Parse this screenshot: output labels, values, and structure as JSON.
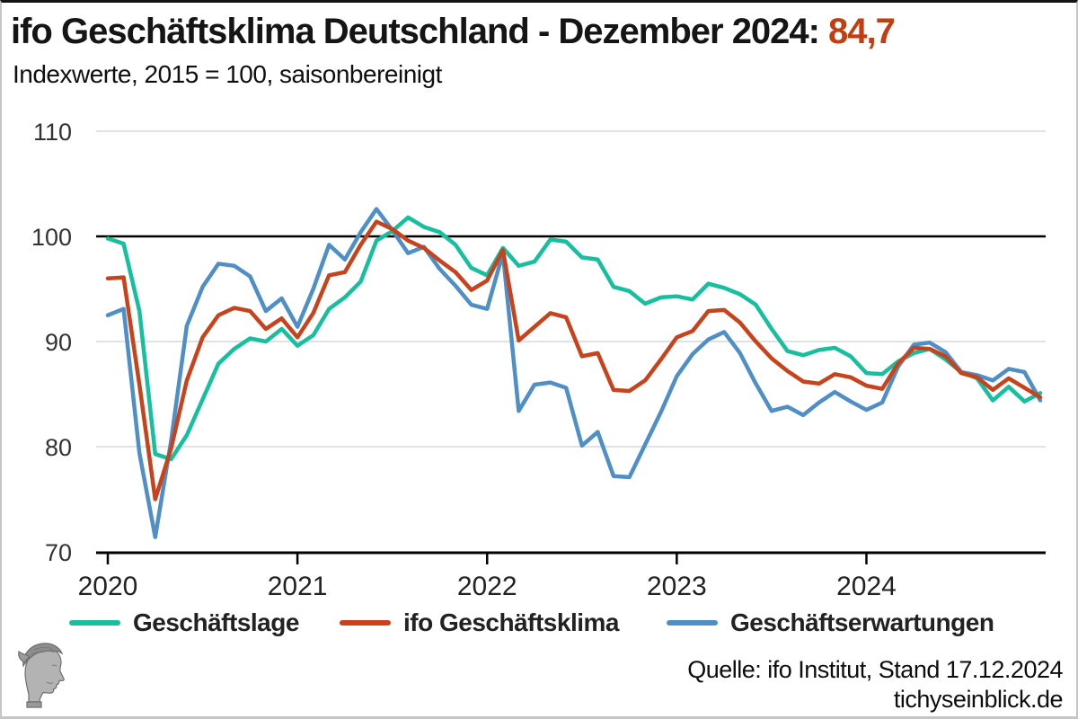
{
  "header": {
    "title_prefix": "ifo Geschäftsklima Deutschland - Dezember 2024:",
    "title_value": "84,7",
    "title_value_color": "#c13e10",
    "subtitle": "Indexwerte, 2015 = 100, saisonbereinigt"
  },
  "chart_data": {
    "type": "line",
    "x_start": "2020-01",
    "x_interval": "monthly",
    "x_tick_labels": [
      "2020",
      "2021",
      "2022",
      "2023",
      "2024"
    ],
    "y_ticks": [
      110,
      100,
      90,
      80,
      70
    ],
    "ylim": [
      70,
      110
    ],
    "gridlines": [
      110,
      90,
      80
    ],
    "reference_line": 100,
    "grid_color": "#e2e2e2",
    "series": [
      {
        "name": "Geschäftslage",
        "color": "#16bf9e",
        "values": [
          99.8,
          99.3,
          92.9,
          79.3,
          78.8,
          81.1,
          84.5,
          87.9,
          89.3,
          90.3,
          90.0,
          91.2,
          89.6,
          90.6,
          93.1,
          94.2,
          95.7,
          99.6,
          100.5,
          101.8,
          100.9,
          100.4,
          99.2,
          97.0,
          96.3,
          98.9,
          97.2,
          97.6,
          99.7,
          99.5,
          98.0,
          97.8,
          95.2,
          94.8,
          93.6,
          94.2,
          94.3,
          94.0,
          95.5,
          95.1,
          94.5,
          93.5,
          91.2,
          89.1,
          88.7,
          89.2,
          89.4,
          88.6,
          87.0,
          86.9,
          88.1,
          88.9,
          89.3,
          88.3,
          87.1,
          86.5,
          84.4,
          85.7,
          84.3,
          85.1
        ]
      },
      {
        "name": "ifo Geschäftsklima",
        "color": "#c8421b",
        "values": [
          96.0,
          96.1,
          85.9,
          75.0,
          79.8,
          86.3,
          90.4,
          92.5,
          93.2,
          92.9,
          91.2,
          92.2,
          90.4,
          92.7,
          96.3,
          96.6,
          99.2,
          101.4,
          100.7,
          99.6,
          98.9,
          97.7,
          96.6,
          94.9,
          95.8,
          98.7,
          90.1,
          91.4,
          92.7,
          92.3,
          88.6,
          88.9,
          85.4,
          85.3,
          86.3,
          88.3,
          90.4,
          91.0,
          92.9,
          93.0,
          91.8,
          90.0,
          88.4,
          87.2,
          86.2,
          86.0,
          86.9,
          86.6,
          85.8,
          85.5,
          87.9,
          89.4,
          89.3,
          88.6,
          87.0,
          86.6,
          85.4,
          86.5,
          85.6,
          84.7
        ]
      },
      {
        "name": "Geschäftserwartungen",
        "color": "#4e8fc7",
        "values": [
          92.5,
          93.1,
          79.4,
          71.4,
          80.5,
          91.5,
          95.2,
          97.4,
          97.2,
          96.2,
          92.9,
          94.1,
          91.4,
          95.0,
          99.2,
          97.8,
          100.4,
          102.6,
          100.6,
          98.4,
          99.0,
          96.9,
          95.3,
          93.5,
          93.1,
          98.4,
          83.4,
          85.9,
          86.1,
          85.6,
          80.1,
          81.4,
          77.2,
          77.1,
          80.2,
          83.3,
          86.7,
          88.8,
          90.2,
          90.9,
          88.9,
          86.0,
          83.4,
          83.8,
          83.0,
          84.2,
          85.2,
          84.3,
          83.5,
          84.2,
          87.6,
          89.7,
          89.9,
          89.0,
          87.1,
          86.8,
          86.3,
          87.4,
          87.1,
          84.4
        ]
      }
    ]
  },
  "footer": {
    "source": "Quelle: ifo Institut, Stand 17.12.2024",
    "site": "tichyseinblick.de"
  },
  "logo": {
    "name": "tichys-einblick-hermes-head-logo"
  }
}
